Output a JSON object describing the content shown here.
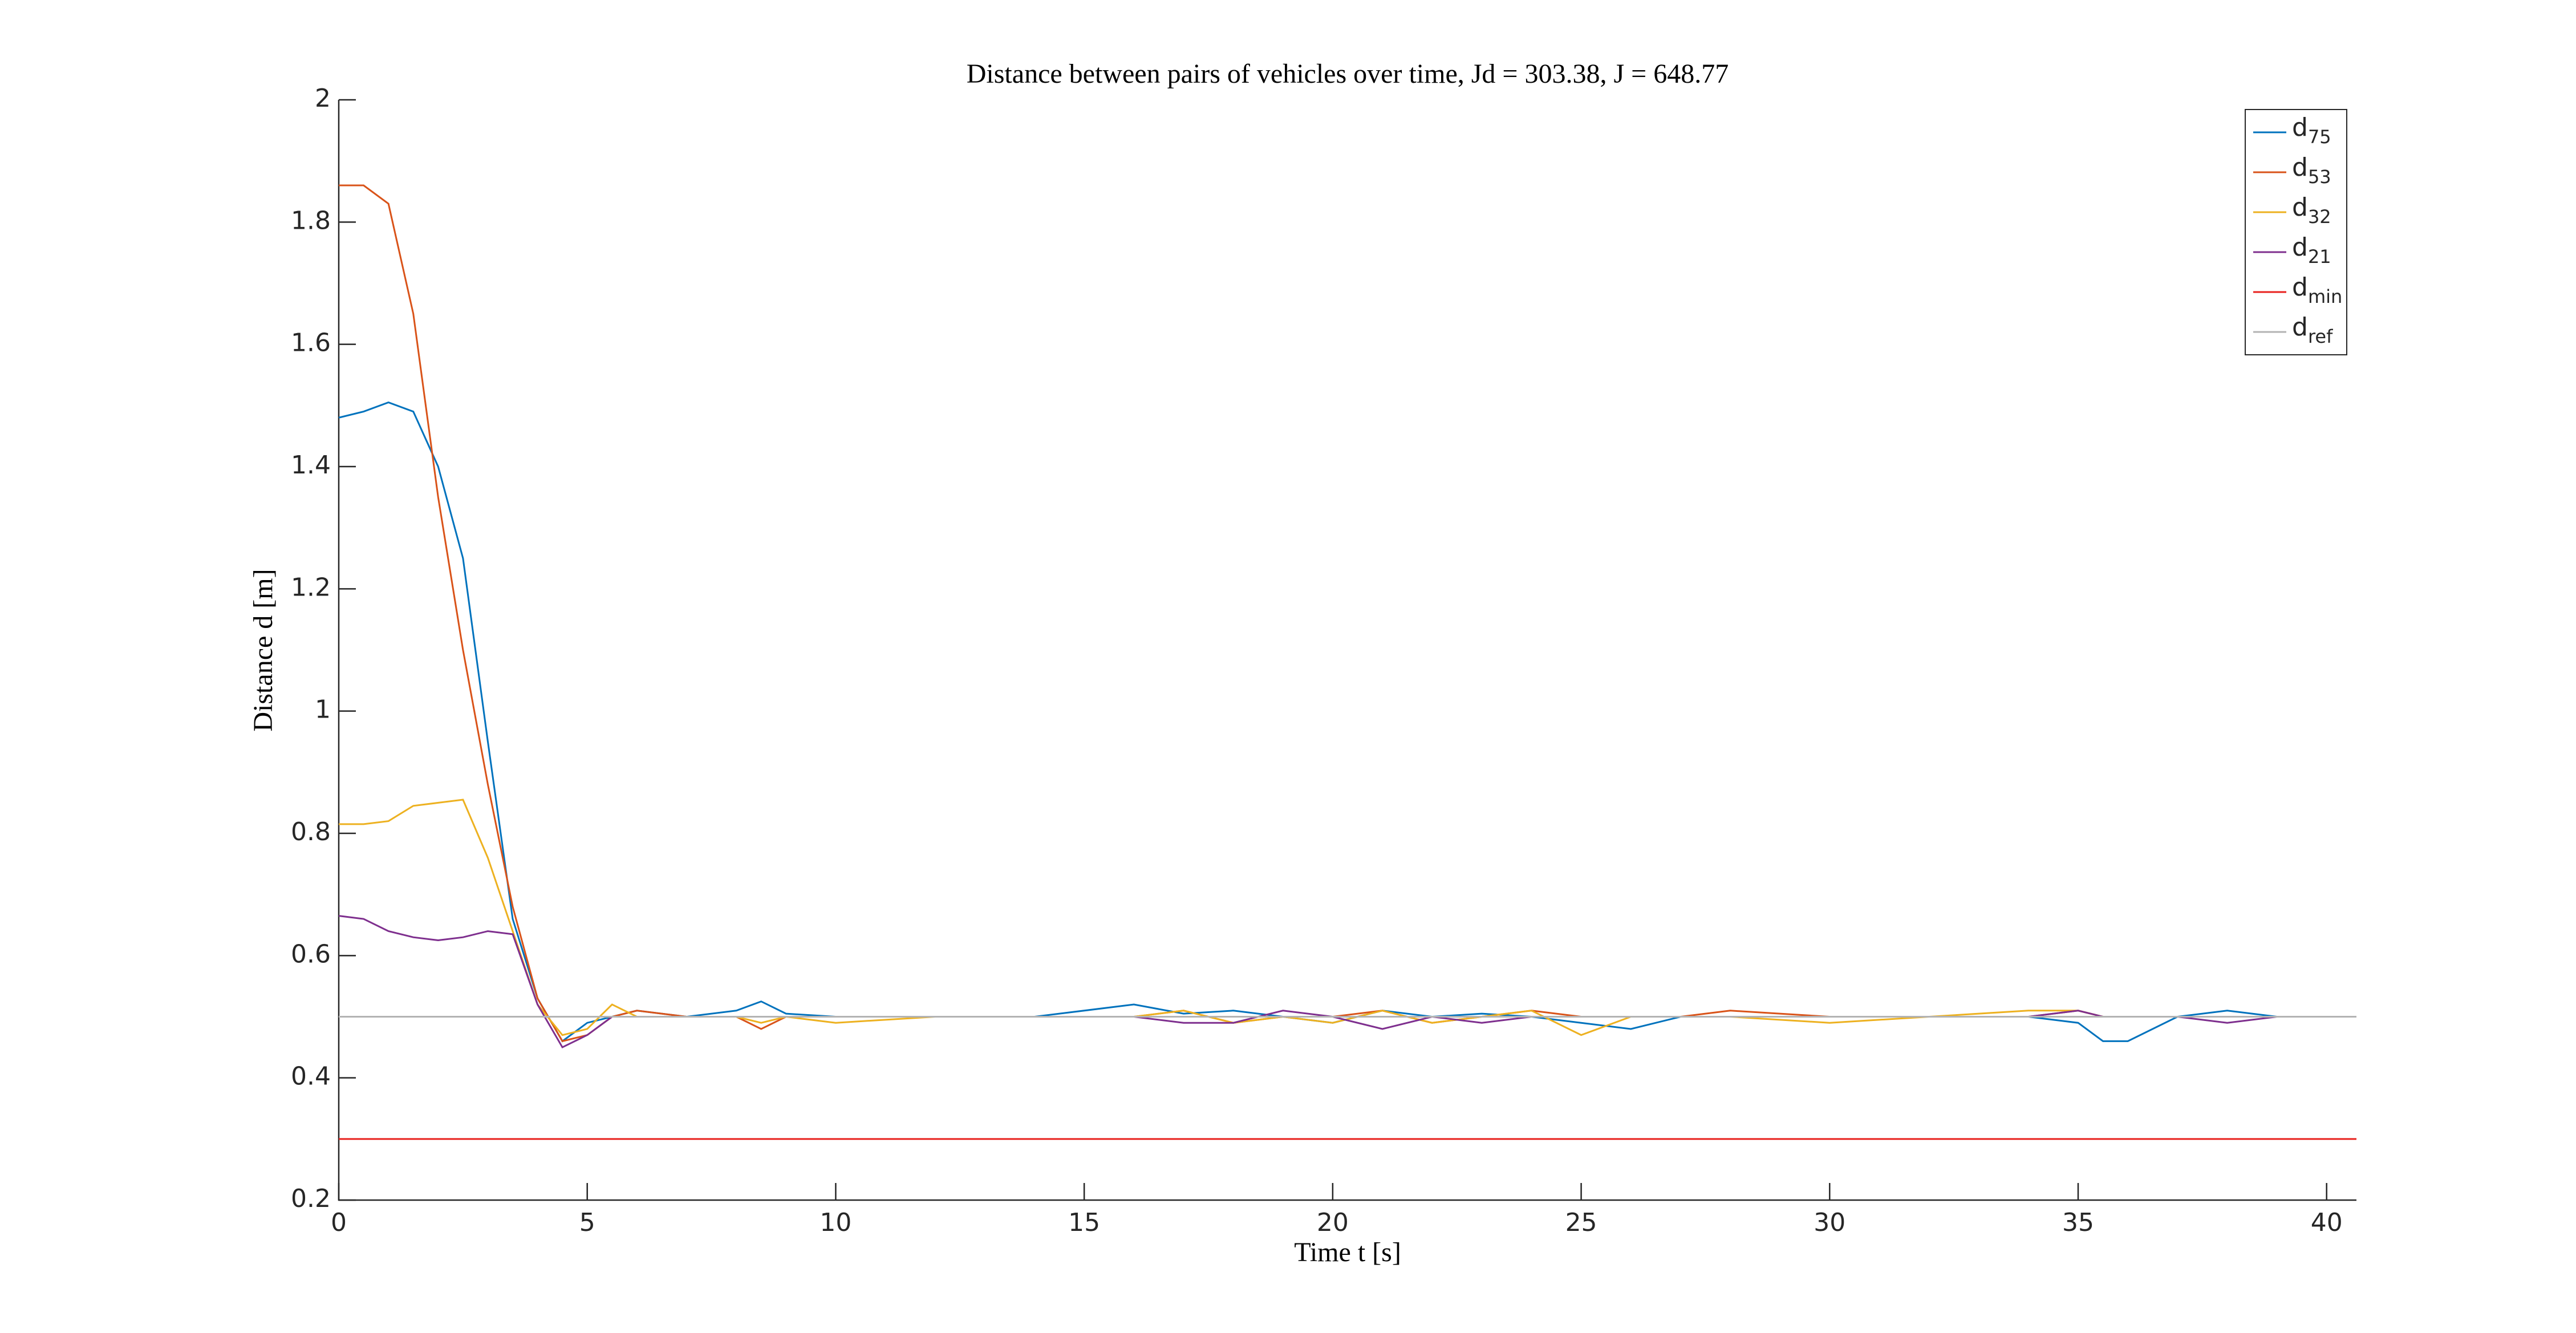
{
  "chart_data": {
    "type": "line",
    "title": "Distance between pairs of vehicles over time, Jd = 303.38, J = 648.77",
    "x_label": "Time t [s]",
    "y_label": "Distance d [m]",
    "x": [
      0,
      0.5,
      1,
      1.5,
      2,
      2.5,
      3,
      3.5,
      4,
      4.5,
      5,
      5.5,
      6,
      7,
      8,
      8.5,
      9,
      10,
      12,
      14,
      16,
      17,
      18,
      19,
      20,
      21,
      22,
      23,
      24,
      25,
      26,
      27,
      28,
      30,
      32,
      34,
      35,
      35.5,
      36,
      37,
      38,
      39,
      40.6
    ],
    "series": [
      {
        "name": "d",
        "subscript": "75",
        "color": "#0072bd",
        "values": [
          1.48,
          1.49,
          1.505,
          1.49,
          1.4,
          1.25,
          0.95,
          0.66,
          0.53,
          0.46,
          0.49,
          0.5,
          0.51,
          0.5,
          0.51,
          0.525,
          0.505,
          0.5,
          0.5,
          0.5,
          0.52,
          0.505,
          0.51,
          0.5,
          0.49,
          0.51,
          0.5,
          0.505,
          0.5,
          0.49,
          0.48,
          0.5,
          0.5,
          0.5,
          0.5,
          0.5,
          0.49,
          0.46,
          0.46,
          0.5,
          0.51,
          0.5,
          0.5
        ]
      },
      {
        "name": "d",
        "subscript": "53",
        "color": "#d95319",
        "values": [
          1.86,
          1.86,
          1.83,
          1.65,
          1.35,
          1.1,
          0.88,
          0.68,
          0.53,
          0.46,
          0.47,
          0.5,
          0.51,
          0.5,
          0.5,
          0.48,
          0.5,
          0.5,
          0.5,
          0.5,
          0.5,
          0.51,
          0.49,
          0.5,
          0.5,
          0.51,
          0.49,
          0.5,
          0.51,
          0.5,
          0.5,
          0.5,
          0.51,
          0.5,
          0.5,
          0.5,
          0.51,
          0.5,
          0.5,
          0.5,
          0.5,
          0.5,
          0.5
        ]
      },
      {
        "name": "d",
        "subscript": "32",
        "color": "#edb120",
        "values": [
          0.815,
          0.815,
          0.82,
          0.845,
          0.85,
          0.855,
          0.76,
          0.64,
          0.52,
          0.47,
          0.48,
          0.52,
          0.5,
          0.5,
          0.5,
          0.49,
          0.5,
          0.49,
          0.5,
          0.5,
          0.5,
          0.51,
          0.49,
          0.5,
          0.49,
          0.51,
          0.49,
          0.5,
          0.51,
          0.47,
          0.5,
          0.5,
          0.5,
          0.49,
          0.5,
          0.51,
          0.51,
          0.5,
          0.5,
          0.5,
          0.5,
          0.5,
          0.5
        ]
      },
      {
        "name": "d",
        "subscript": "21",
        "color": "#7e2f8e",
        "values": [
          0.665,
          0.66,
          0.64,
          0.63,
          0.625,
          0.63,
          0.64,
          0.635,
          0.52,
          0.45,
          0.47,
          0.5,
          0.5,
          0.5,
          0.5,
          0.5,
          0.5,
          0.5,
          0.5,
          0.5,
          0.5,
          0.49,
          0.49,
          0.51,
          0.5,
          0.48,
          0.5,
          0.49,
          0.5,
          0.5,
          0.5,
          0.5,
          0.5,
          0.5,
          0.5,
          0.5,
          0.51,
          0.5,
          0.5,
          0.5,
          0.49,
          0.5,
          0.5
        ]
      },
      {
        "name": "d",
        "subscript": "min",
        "color": "#e8211d",
        "value": 0.3
      },
      {
        "name": "d",
        "subscript": "ref",
        "color": "#b3b3b3",
        "value": 0.5
      }
    ],
    "xlim": [
      0,
      40.6
    ],
    "xticks": [
      0,
      5,
      10,
      15,
      20,
      25,
      30,
      35,
      40
    ],
    "ylim": [
      0.2,
      2
    ],
    "yticks": [
      0.2,
      0.4,
      0.6,
      0.8,
      1,
      1.2,
      1.4,
      1.6,
      1.8,
      2
    ],
    "legend": "top-right",
    "grid": false
  }
}
